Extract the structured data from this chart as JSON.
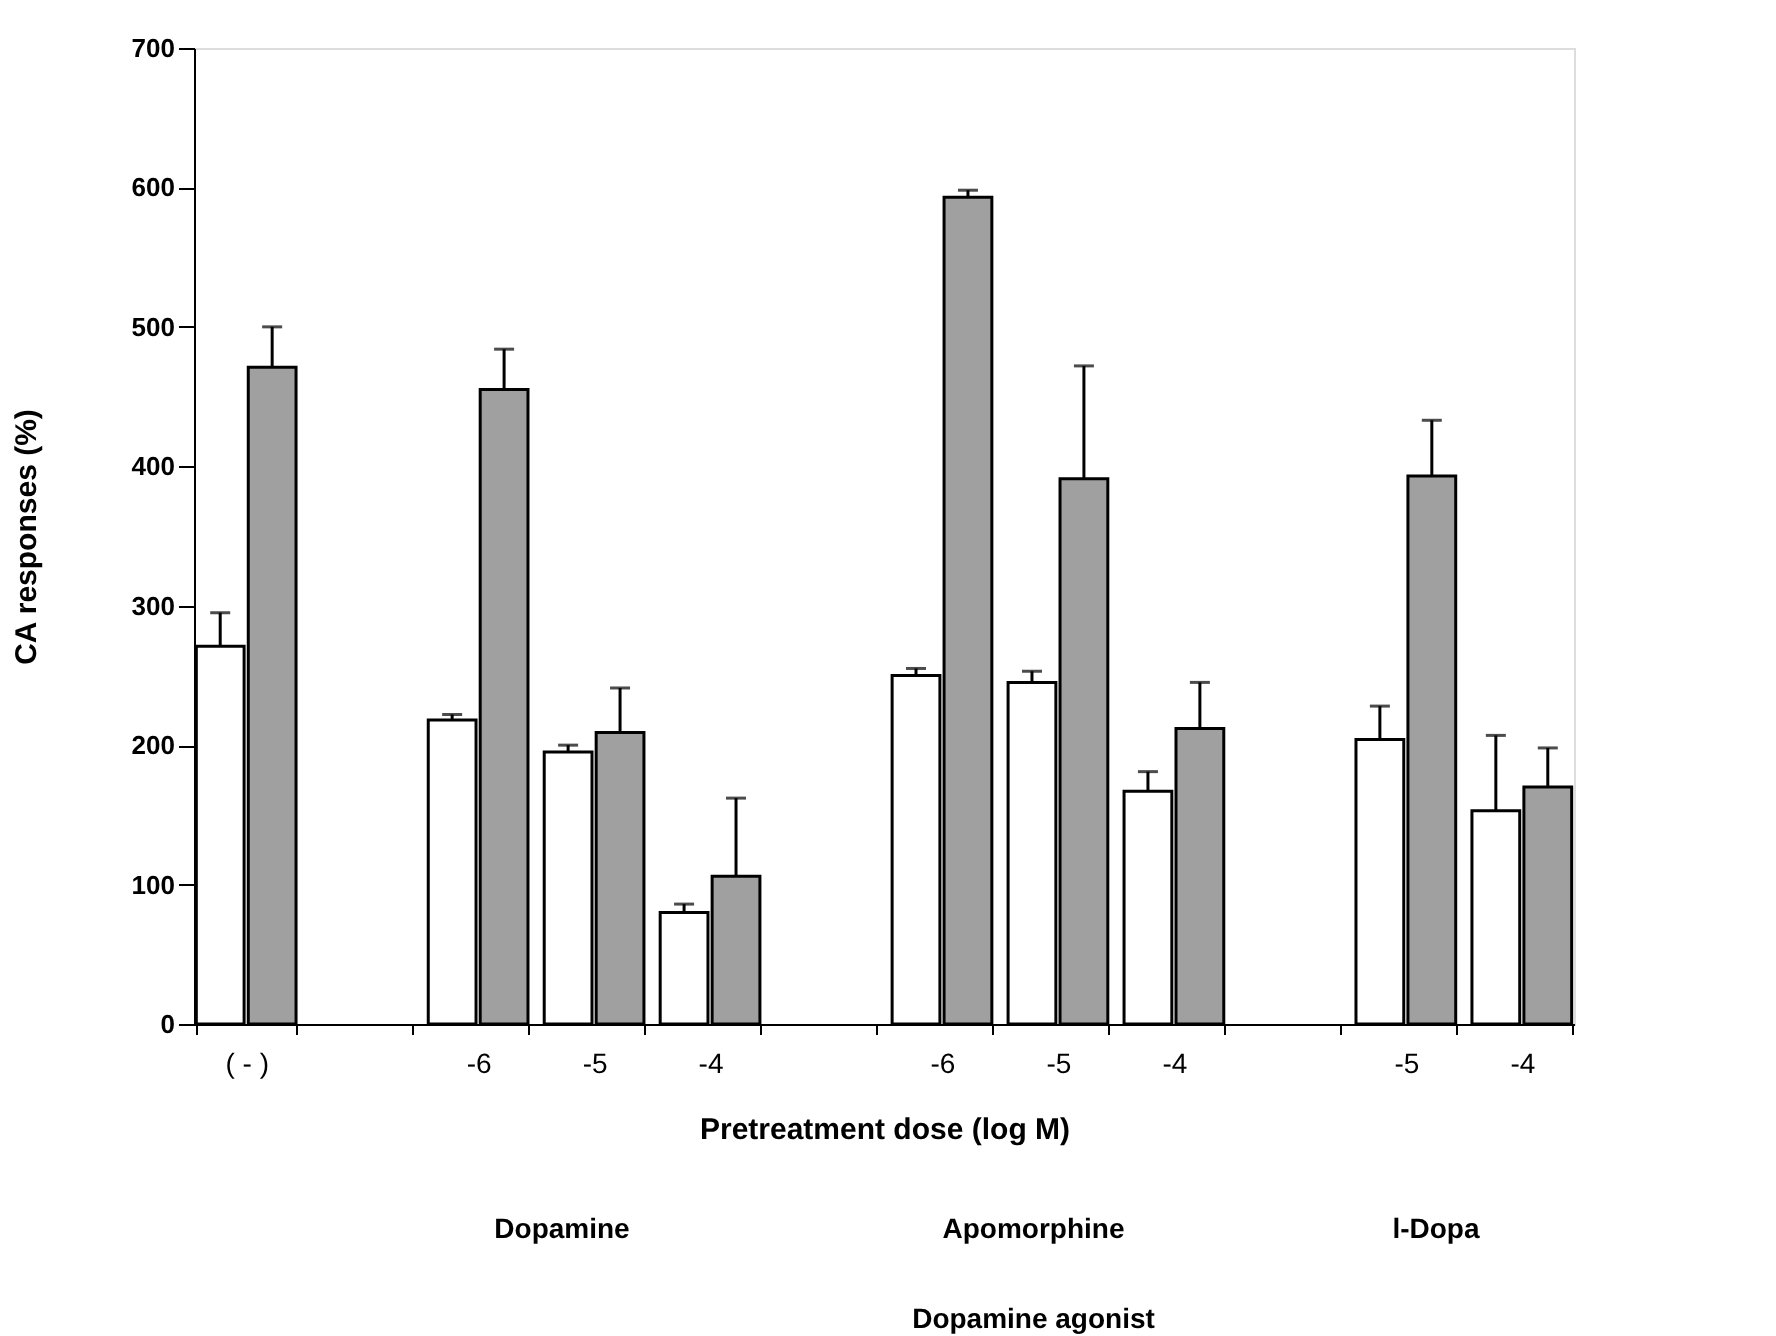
{
  "chart_data": {
    "type": "bar",
    "ylabel": "CA responses (%)",
    "xlabel": "Pretreatment dose (log M)",
    "categories": [
      "( - )",
      null,
      "-6",
      "-5",
      "-4",
      null,
      "-6",
      "-5",
      "-4",
      null,
      "-5",
      "-4"
    ],
    "series": [
      {
        "color": "#ffffff",
        "values": [
          271,
          null,
          218,
          195,
          80,
          null,
          250,
          245,
          167,
          null,
          204,
          153
        ],
        "errors": [
          [
            271,
            295
          ],
          null,
          [
            218,
            222
          ],
          [
            195,
            200
          ],
          [
            80,
            86
          ],
          null,
          [
            250,
            255
          ],
          [
            245,
            253
          ],
          [
            167,
            181
          ],
          null,
          [
            204,
            228
          ],
          [
            153,
            207
          ]
        ]
      },
      {
        "color": "#a0a0a0",
        "values": [
          471,
          null,
          455,
          209,
          106,
          null,
          593,
          391,
          212,
          null,
          393,
          170
        ],
        "errors": [
          [
            471,
            500
          ],
          null,
          [
            455,
            484
          ],
          [
            209,
            241
          ],
          [
            106,
            162
          ],
          null,
          [
            593,
            598
          ],
          [
            391,
            472
          ],
          [
            212,
            245
          ],
          null,
          [
            393,
            433
          ],
          [
            170,
            198
          ]
        ]
      }
    ],
    "ylim": [
      0,
      700
    ],
    "yticks": [
      0,
      100,
      200,
      300,
      400,
      500,
      600,
      700
    ],
    "grid": false,
    "legend": false,
    "annotations": [
      "Dopamine",
      "Apomorphine",
      "l-Dopa",
      "Dopamine agonist"
    ]
  }
}
